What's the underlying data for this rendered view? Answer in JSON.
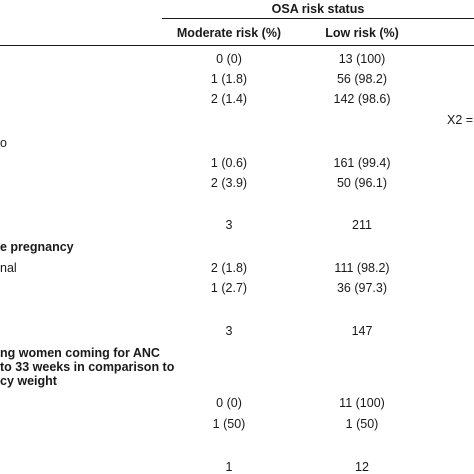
{
  "table": {
    "group_header": "OSA risk status",
    "columns": {
      "moderate": "Moderate risk (%)",
      "low": "Low risk (%)"
    },
    "rows": [
      {
        "moderate": "0 (0)",
        "low": "13 (100)"
      },
      {
        "moderate": "1 (1.8)",
        "low": "56 (98.2)"
      },
      {
        "moderate": "2 (1.4)",
        "low": "142 (98.6)"
      },
      {
        "stat": "X2 ="
      },
      {
        "label": "o"
      },
      {
        "moderate": "1 (0.6)",
        "low": "161 (99.4)"
      },
      {
        "moderate": "2 (3.9)",
        "low": "50 (96.1)"
      },
      {
        "moderate": "3",
        "low": "211"
      },
      {
        "section": "e pregnancy"
      },
      {
        "label": "nal",
        "moderate": "2 (1.8)",
        "low": "111 (98.2)"
      },
      {
        "moderate": "1 (2.7)",
        "low": "36 (97.3)"
      },
      {
        "moderate": "3",
        "low": "147"
      },
      {
        "section_lines": [
          "ng women coming for ANC",
          "to 33 weeks in comparison to",
          "cy weight"
        ]
      },
      {
        "moderate": "0 (0)",
        "low": "11 (100)"
      },
      {
        "moderate": "1 (50)",
        "low": "1 (50)"
      },
      {
        "moderate": "1",
        "low": "12"
      }
    ]
  }
}
